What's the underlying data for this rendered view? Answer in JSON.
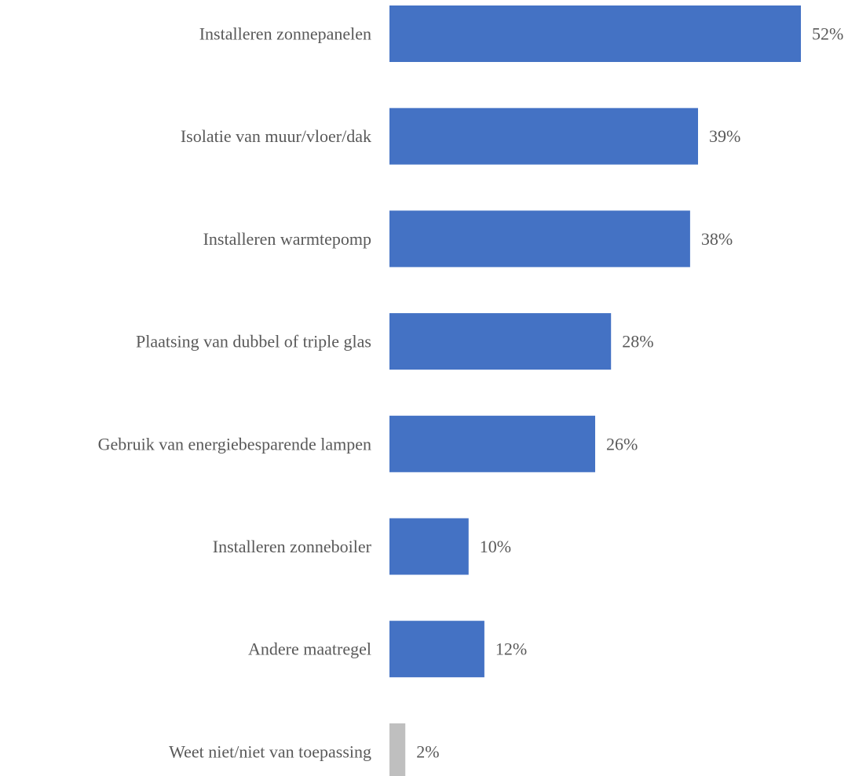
{
  "chart_data": {
    "type": "bar",
    "orientation": "horizontal",
    "title": "",
    "xlabel": "",
    "ylabel": "",
    "unit": "%",
    "xlim": [
      0,
      52
    ],
    "grid": false,
    "legend": "none",
    "categories": [
      "Installeren zonnepanelen",
      "Isolatie van muur/vloer/dak",
      "Installeren warmtepomp",
      "Plaatsing van dubbel of triple glas",
      "Gebruik van energiebesparende lampen",
      "Installeren zonneboiler",
      "Andere maatregel",
      "Weet niet/niet van toepassing"
    ],
    "values": [
      52,
      39,
      38,
      28,
      26,
      10,
      12,
      2
    ],
    "value_labels": [
      "52%",
      "39%",
      "38%",
      "28%",
      "26%",
      "10%",
      "12%",
      "2%"
    ],
    "bar_colors": [
      "#4472C4",
      "#4472C4",
      "#4472C4",
      "#4472C4",
      "#4472C4",
      "#4472C4",
      "#4472C4",
      "#BFBFBF"
    ]
  }
}
